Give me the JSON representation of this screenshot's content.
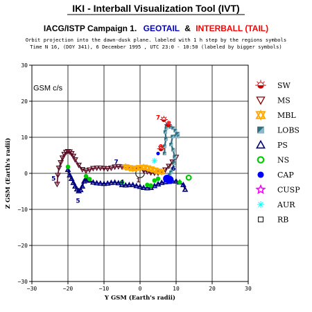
{
  "header": {
    "app_title": "IKI - Interball Visualization Tool (IVT)",
    "campaign_prefix": "IACG/ISTP Campaign 1.",
    "geotail": "GEOTAIL",
    "amp": "&",
    "interball": "INTERBALL (TAIL)",
    "line1": "Orbit projection into the dawn-dusk plane. labeled with 1 h step by the regions symbols",
    "line2": "Time N 16, (DOY 341), 6 December 1995 , UTC 23:0 - 10:50 (labeled by bigger symbols)"
  },
  "colors": {
    "geotail": "#0000cc",
    "interball": "#ff0000"
  },
  "chart_data": {
    "type": "scatter",
    "title": "IKI - Interball Visualization Tool (IVT)",
    "xlabel": "Y GSM (Earth's radii)",
    "ylabel": "Z GSM (Earth's radii)",
    "annotation": "GSM c/s",
    "xlim": [
      -30,
      30
    ],
    "ylim": [
      -30,
      30
    ],
    "xticks": [
      -30,
      -20,
      -10,
      0,
      10,
      20,
      30
    ],
    "yticks": [
      -30,
      -20,
      -10,
      0,
      10,
      20,
      30
    ],
    "grid": true,
    "legend_position": "right",
    "legend": [
      {
        "label": "SW",
        "icon": "sun-half-icon",
        "color": "#cc0000"
      },
      {
        "label": "MS",
        "icon": "triangle-down-icon",
        "color": "#880000"
      },
      {
        "label": "MBL",
        "icon": "star-of-david-icon",
        "color": "#ffaa00"
      },
      {
        "label": "LOBS",
        "icon": "lobe-square-icon",
        "color": "#2f6f80"
      },
      {
        "label": "PS",
        "icon": "triangle-up-icon",
        "color": "#000080"
      },
      {
        "label": "NS",
        "icon": "circle-ring-icon",
        "color": "#00cc00"
      },
      {
        "label": "CAP",
        "icon": "filled-circle-icon",
        "color": "#0000ff"
      },
      {
        "label": "CUSP",
        "icon": "star-outline-icon",
        "color": "#ff00ff"
      },
      {
        "label": "AUR",
        "icon": "asterisk-icon",
        "color": "#00ffff"
      },
      {
        "label": "RB",
        "icon": "open-square-icon",
        "color": "#000000"
      }
    ],
    "series": [
      {
        "name": "GEOTAIL",
        "color": "#000080",
        "x": [
          -20,
          -19.5,
          -19,
          -18.5,
          -18,
          -17.5,
          -17,
          -16.5,
          -16,
          -15.5,
          -15,
          -14.5,
          -14,
          -13,
          -12,
          -11,
          -10,
          -9,
          -8,
          -7,
          -6,
          -5,
          -4,
          -3,
          -2,
          -1,
          0,
          1,
          2,
          3,
          4,
          5,
          6,
          7,
          8,
          9,
          10,
          11,
          12,
          12.5
        ],
        "y": [
          1,
          -0.5,
          -1.5,
          -2.6,
          -3.6,
          -4.4,
          -4.9,
          -4.6,
          -3.6,
          -2.2,
          -1.5,
          -1.7,
          -2,
          -2.5,
          -2.7,
          -2.8,
          -2.9,
          -2.8,
          -2.6,
          -2.5,
          -2.7,
          -3.2,
          -3.3,
          -3.2,
          -3.2,
          -3.5,
          -3.7,
          -4,
          -4.1,
          -4,
          -3.5,
          -3,
          -2.6,
          -2.4,
          -2.3,
          -2.2,
          -2.2,
          -2.5,
          -3.2,
          -4.5
        ]
      },
      {
        "name": "INTERBALL (TAIL)",
        "color": "#5a0c24",
        "x": [
          -23,
          -22.8,
          -22.5,
          -22,
          -21.5,
          -21,
          -20.5,
          -20,
          -19.5,
          -19,
          -18.5,
          -18,
          -17,
          -16,
          -15,
          -14,
          -13,
          -12,
          -11,
          -10,
          -9,
          -8,
          -7,
          -6,
          -5,
          -4,
          -3,
          -2,
          -1,
          0,
          1,
          2,
          3,
          4,
          5,
          6,
          7,
          8,
          9,
          10
        ],
        "y": [
          -3,
          -0.5,
          1.5,
          3,
          4.3,
          5.3,
          5.9,
          6.1,
          6,
          5.5,
          4.8,
          3.8,
          2.3,
          1.1,
          0.7,
          1,
          1.4,
          1.5,
          1.5,
          1.4,
          1.3,
          1.5,
          1.8,
          1.9,
          1.8,
          1.6,
          1.6,
          1.5,
          1.4,
          1.3,
          0.8,
          0.5,
          0.2,
          0.1,
          0.1,
          0.3,
          1,
          2,
          3.2,
          4.5
        ]
      },
      {
        "name": "INTERBALL LOBS",
        "color": "#2f6f80",
        "x": [
          6.8,
          6.8,
          7.2,
          7,
          7.4,
          7.3,
          7.6,
          8,
          8.5,
          9.2,
          9.8,
          10.2,
          10.5,
          10.5,
          9.8,
          9,
          8.6,
          9.2,
          9.6,
          9.4,
          9,
          8.6,
          8.2,
          7.8,
          7.4
        ],
        "y": [
          5.5,
          7.5,
          9.5,
          11.5,
          13,
          12.5,
          13.3,
          13.2,
          12.8,
          12.5,
          11.8,
          10.9,
          11,
          10.2,
          10.3,
          10.2,
          8,
          6.5,
          4.5,
          2.8,
          1.2,
          0.3,
          -0.5,
          -1,
          -1.4
        ]
      },
      {
        "name": "MBL",
        "color": "#ffaa00",
        "x": [
          -4,
          -3,
          -2,
          -1,
          0,
          1,
          2,
          3,
          4,
          5,
          6
        ],
        "y": [
          1.8,
          1.5,
          1.3,
          1.4,
          1.6,
          1.7,
          1.5,
          1.2,
          0.9,
          0.6,
          0.4
        ]
      },
      {
        "name": "NS",
        "color": "#00cc00",
        "x": [
          -20,
          -15,
          -14,
          -5,
          2,
          3,
          4,
          5,
          11
        ],
        "y": [
          1.8,
          -0.8,
          -1.6,
          -2.5,
          -3.2,
          -3.4,
          -2,
          -1.5,
          -2.5
        ]
      },
      {
        "name": "CAP",
        "color": "#0000ff",
        "x": [
          7.5,
          8.2,
          5
        ],
        "y": [
          -1.5,
          -1.8,
          5.5
        ]
      },
      {
        "name": "AUR",
        "color": "#00ffff",
        "x": [
          4
        ],
        "y": [
          3.5
        ]
      },
      {
        "name": "SW",
        "color": "#cc0000",
        "x": [
          6.6,
          5.8,
          7.8
        ],
        "y": [
          14.9,
          6.8,
          13.5
        ]
      }
    ],
    "point_labels": [
      {
        "text": "5",
        "x": -24,
        "y": -2,
        "color": "#000080"
      },
      {
        "text": "5",
        "x": -17.2,
        "y": -8.2,
        "color": "#000080"
      },
      {
        "text": "4",
        "x": -5,
        "y": -3,
        "color": "#000080"
      },
      {
        "text": "6",
        "x": 9.3,
        "y": 0.8,
        "color": "#000080"
      },
      {
        "text": "7",
        "x": -6.6,
        "y": 2.6,
        "color": "#000080"
      },
      {
        "text": "7",
        "x": 5,
        "y": 14.9,
        "color": "#ff0000"
      },
      {
        "text": "8",
        "x": 8,
        "y": 13.3,
        "color": "#ff0000"
      },
      {
        "text": "9",
        "x": 5.8,
        "y": 6.8,
        "color": "#ff0000"
      },
      {
        "text": "1",
        "x": -0.5,
        "y": -2.5,
        "color": "#5a0c24"
      }
    ],
    "earth": {
      "x": 0,
      "y": 0,
      "radius": 1
    }
  }
}
